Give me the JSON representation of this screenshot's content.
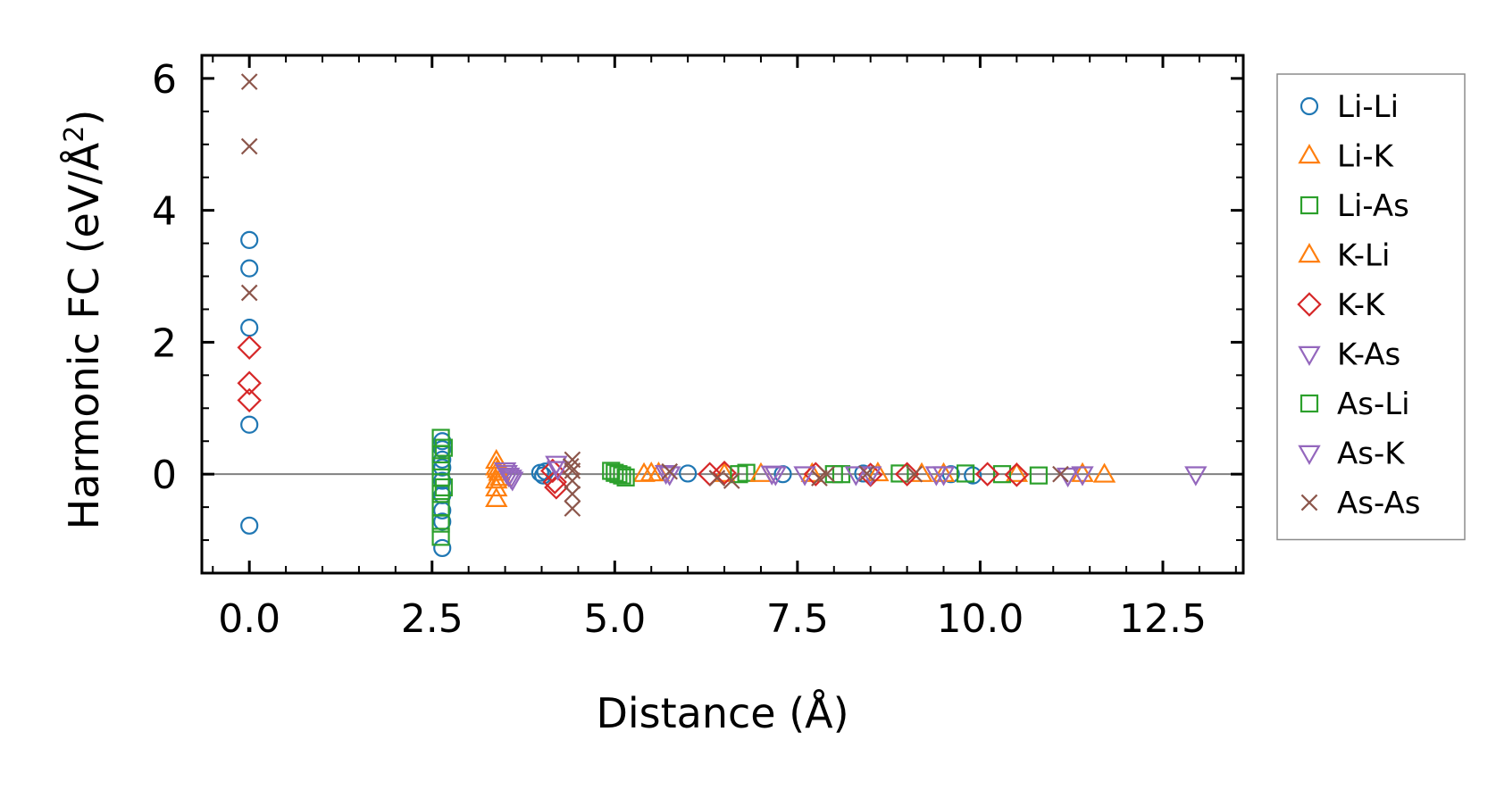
{
  "chart_data": {
    "type": "scatter",
    "title": "",
    "xlabel": "Distance (Å)",
    "ylabel_prefix": "Harmonic FC (eV/Å",
    "ylabel_sup": "2",
    "ylabel_suffix": ")",
    "xlim": [
      -0.65,
      13.6
    ],
    "ylim": [
      -1.5,
      6.35
    ],
    "xticks": [
      0.0,
      2.5,
      5.0,
      7.5,
      10.0,
      12.5
    ],
    "xtick_labels": [
      "0.0",
      "2.5",
      "5.0",
      "7.5",
      "10.0",
      "12.5"
    ],
    "yticks": [
      0,
      2,
      4,
      6
    ],
    "ytick_labels": [
      "0",
      "2",
      "4",
      "6"
    ],
    "grid": false,
    "zero_line": true,
    "legend_position": "right",
    "series": [
      {
        "name": "Li-Li",
        "marker": "circle",
        "color": "#1f77b4",
        "points": [
          [
            0,
            3.55
          ],
          [
            0,
            3.12
          ],
          [
            0,
            2.22
          ],
          [
            0,
            0.75
          ],
          [
            0,
            -0.78
          ],
          [
            2.64,
            0.5
          ],
          [
            2.64,
            0.38
          ],
          [
            2.64,
            0.22
          ],
          [
            2.64,
            0.1
          ],
          [
            2.64,
            -0.1
          ],
          [
            2.64,
            -0.32
          ],
          [
            2.64,
            -0.55
          ],
          [
            2.64,
            -0.72
          ],
          [
            2.64,
            -1.12
          ],
          [
            3.98,
            0.02
          ],
          [
            4.02,
            -0.02
          ],
          [
            4.05,
            0.04
          ],
          [
            6.0,
            0.01
          ],
          [
            7.3,
            0.0
          ],
          [
            8.4,
            0.01
          ],
          [
            9.6,
            0.0
          ],
          [
            9.9,
            -0.02
          ]
        ]
      },
      {
        "name": "Li-K",
        "marker": "triangle-up",
        "color": "#ff7f0e",
        "points": [
          [
            3.38,
            0.2
          ],
          [
            3.38,
            0.1
          ],
          [
            3.38,
            -0.1
          ],
          [
            3.38,
            -0.22
          ],
          [
            3.38,
            -0.38
          ],
          [
            3.42,
            0.02
          ],
          [
            5.4,
            0.0
          ],
          [
            5.6,
            0.01
          ],
          [
            6.5,
            0.0
          ],
          [
            7.7,
            0.0
          ],
          [
            8.6,
            0.01
          ],
          [
            9.5,
            0.0
          ],
          [
            10.5,
            0.0
          ],
          [
            11.4,
            0.0
          ],
          [
            11.7,
            -0.01
          ]
        ]
      },
      {
        "name": "Li-As",
        "marker": "square",
        "color": "#2ca02c",
        "points": [
          [
            2.62,
            0.55
          ],
          [
            2.62,
            0.3
          ],
          [
            2.62,
            0.12
          ],
          [
            2.62,
            -0.05
          ],
          [
            2.62,
            -0.3
          ],
          [
            2.62,
            -0.5
          ],
          [
            2.62,
            -0.75
          ],
          [
            2.62,
            -0.95
          ],
          [
            4.95,
            0.05
          ],
          [
            5.05,
            0.0
          ],
          [
            5.15,
            -0.05
          ],
          [
            6.8,
            0.02
          ],
          [
            8.1,
            0.0
          ],
          [
            8.9,
            0.01
          ],
          [
            10.3,
            0.0
          ],
          [
            10.8,
            -0.02
          ]
        ]
      },
      {
        "name": "K-Li",
        "marker": "triangle-up",
        "color": "#ff7f0e",
        "points": [
          [
            3.4,
            0.06
          ],
          [
            3.44,
            -0.06
          ],
          [
            5.5,
            0.01
          ],
          [
            7.0,
            0.0
          ],
          [
            9.2,
            0.0
          ]
        ]
      },
      {
        "name": "K-K",
        "marker": "diamond",
        "color": "#d62728",
        "points": [
          [
            0,
            1.92
          ],
          [
            0,
            1.38
          ],
          [
            0,
            1.12
          ],
          [
            4.15,
            0.05
          ],
          [
            4.18,
            -0.12
          ],
          [
            4.2,
            -0.2
          ],
          [
            6.3,
            0.0
          ],
          [
            6.5,
            0.02
          ],
          [
            7.75,
            0.0
          ],
          [
            8.5,
            -0.01
          ],
          [
            9.0,
            0.0
          ],
          [
            10.1,
            0.0
          ],
          [
            10.5,
            -0.01
          ]
        ]
      },
      {
        "name": "K-As",
        "marker": "triangle-down",
        "color": "#9467bd",
        "points": [
          [
            3.5,
            0.06
          ],
          [
            3.55,
            -0.02
          ],
          [
            3.6,
            -0.08
          ],
          [
            4.2,
            0.16
          ],
          [
            5.7,
            0.02
          ],
          [
            7.15,
            0.01
          ],
          [
            7.6,
            0.0
          ],
          [
            8.5,
            0.0
          ],
          [
            9.4,
            0.0
          ],
          [
            11.2,
            -0.02
          ],
          [
            12.95,
            0.0
          ]
        ]
      },
      {
        "name": "As-Li",
        "marker": "square",
        "color": "#2ca02c",
        "points": [
          [
            2.66,
            0.4
          ],
          [
            2.66,
            -0.2
          ],
          [
            5.0,
            0.02
          ],
          [
            5.1,
            -0.02
          ],
          [
            6.7,
            0.0
          ],
          [
            8.0,
            0.0
          ],
          [
            9.8,
            0.01
          ]
        ]
      },
      {
        "name": "As-K",
        "marker": "triangle-down",
        "color": "#9467bd",
        "points": [
          [
            3.52,
            0.02
          ],
          [
            3.58,
            -0.05
          ],
          [
            4.22,
            0.08
          ],
          [
            5.75,
            0.0
          ],
          [
            7.2,
            0.0
          ],
          [
            8.3,
            0.0
          ],
          [
            9.5,
            0.0
          ],
          [
            11.4,
            0.0
          ]
        ]
      },
      {
        "name": "As-As",
        "marker": "x",
        "color": "#8c564b",
        "points": [
          [
            0,
            5.95
          ],
          [
            0,
            4.97
          ],
          [
            0,
            2.75
          ],
          [
            4.42,
            0.22
          ],
          [
            4.42,
            0.05
          ],
          [
            4.42,
            -0.1
          ],
          [
            4.42,
            -0.3
          ],
          [
            4.42,
            -0.52
          ],
          [
            4.4,
            0.12
          ],
          [
            5.75,
            0.04
          ],
          [
            6.4,
            -0.06
          ],
          [
            6.6,
            -0.1
          ],
          [
            7.8,
            -0.06
          ],
          [
            7.9,
            0.0
          ],
          [
            8.45,
            0.01
          ],
          [
            9.1,
            0.0
          ],
          [
            11.1,
            0.0
          ]
        ]
      }
    ]
  }
}
